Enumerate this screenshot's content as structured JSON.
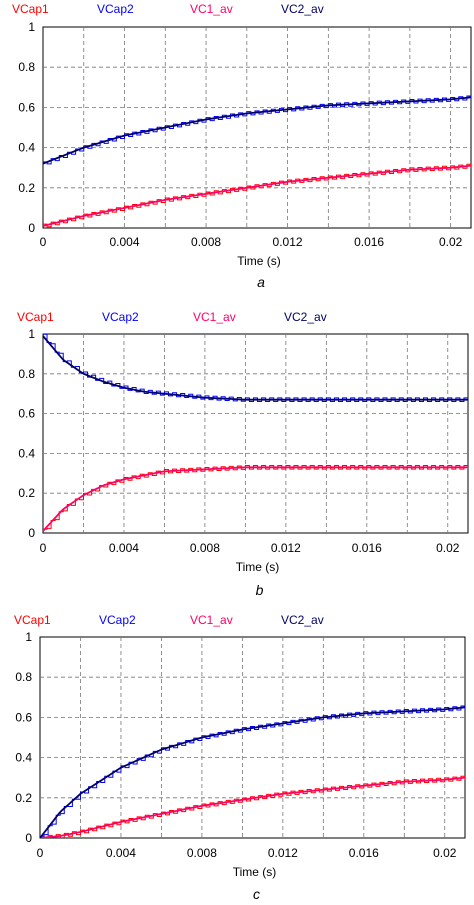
{
  "charts": [
    {
      "panel_label": "a",
      "legend": [
        {
          "label": "VCap1",
          "color": "#ff0000"
        },
        {
          "label": "VCap2",
          "color": "#0000ff"
        },
        {
          "label": "VC1_av",
          "color": "#ff0066"
        },
        {
          "label": "VC2_av",
          "color": "#000066"
        }
      ],
      "x_title": "Time (s)",
      "x_ticks": [
        "0",
        "0.004",
        "0.008",
        "0.012",
        "0.016",
        "0.02"
      ],
      "y_ticks": [
        "0",
        "0.2",
        "0.4",
        "0.6",
        "0.8",
        "1"
      ]
    },
    {
      "panel_label": "b",
      "legend": [
        {
          "label": "VCap1",
          "color": "#ff0000"
        },
        {
          "label": "VCap2",
          "color": "#0000ff"
        },
        {
          "label": "VC1_av",
          "color": "#ff0066"
        },
        {
          "label": "VC2_av",
          "color": "#000066"
        }
      ],
      "x_title": "Time (s)",
      "x_ticks": [
        "0",
        "0.004",
        "0.008",
        "0.012",
        "0.016",
        "0.02"
      ],
      "y_ticks": [
        "0",
        "0.2",
        "0.4",
        "0.6",
        "0.8",
        "1"
      ]
    },
    {
      "panel_label": "c",
      "legend": [
        {
          "label": "VCap1",
          "color": "#ff0000"
        },
        {
          "label": "VCap2",
          "color": "#0000ff"
        },
        {
          "label": "VC1_av",
          "color": "#ff0066"
        },
        {
          "label": "VC2_av",
          "color": "#000066"
        }
      ],
      "x_title": "Time (s)",
      "x_ticks": [
        "0",
        "0.004",
        "0.008",
        "0.012",
        "0.016",
        "0.02"
      ],
      "y_ticks": [
        "0",
        "0.2",
        "0.4",
        "0.6",
        "0.8",
        "1"
      ]
    }
  ],
  "chart_data": [
    {
      "type": "line",
      "xlim": [
        0,
        0.021
      ],
      "ylim": [
        0,
        1
      ],
      "grid": true,
      "legend_position": "top",
      "series": [
        {
          "name": "VCap1",
          "color": "#ff0000",
          "x": [
            0,
            0.002,
            0.004,
            0.006,
            0.008,
            0.01,
            0.012,
            0.014,
            0.016,
            0.018,
            0.02,
            0.021
          ],
          "y": [
            0.01,
            0.06,
            0.1,
            0.14,
            0.17,
            0.2,
            0.23,
            0.25,
            0.27,
            0.29,
            0.3,
            0.31
          ]
        },
        {
          "name": "VCap2",
          "color": "#0000ff",
          "x": [
            0,
            0.002,
            0.004,
            0.006,
            0.008,
            0.01,
            0.012,
            0.014,
            0.016,
            0.018,
            0.02,
            0.021
          ],
          "y": [
            0.32,
            0.4,
            0.46,
            0.5,
            0.54,
            0.57,
            0.59,
            0.61,
            0.62,
            0.63,
            0.64,
            0.65
          ]
        },
        {
          "name": "VC1_av",
          "color": "#ff0066",
          "x": [
            0,
            0.002,
            0.004,
            0.006,
            0.008,
            0.01,
            0.012,
            0.014,
            0.016,
            0.018,
            0.02,
            0.021
          ],
          "y": [
            0.01,
            0.06,
            0.1,
            0.14,
            0.17,
            0.2,
            0.23,
            0.25,
            0.27,
            0.29,
            0.3,
            0.31
          ]
        },
        {
          "name": "VC2_av",
          "color": "#000066",
          "x": [
            0,
            0.002,
            0.004,
            0.006,
            0.008,
            0.01,
            0.012,
            0.014,
            0.016,
            0.018,
            0.02,
            0.021
          ],
          "y": [
            0.32,
            0.4,
            0.46,
            0.5,
            0.54,
            0.57,
            0.59,
            0.61,
            0.62,
            0.63,
            0.64,
            0.65
          ]
        }
      ]
    },
    {
      "type": "line",
      "xlim": [
        0,
        0.021
      ],
      "ylim": [
        0,
        1
      ],
      "grid": true,
      "legend_position": "top",
      "series": [
        {
          "name": "VCap1",
          "color": "#ff0000",
          "x": [
            0,
            0.001,
            0.002,
            0.003,
            0.004,
            0.005,
            0.006,
            0.008,
            0.01,
            0.012,
            0.014,
            0.016,
            0.018,
            0.02,
            0.021
          ],
          "y": [
            0.01,
            0.12,
            0.19,
            0.24,
            0.27,
            0.29,
            0.31,
            0.32,
            0.33,
            0.33,
            0.33,
            0.33,
            0.33,
            0.33,
            0.33
          ]
        },
        {
          "name": "VCap2",
          "color": "#0000ff",
          "x": [
            0,
            0.001,
            0.002,
            0.003,
            0.004,
            0.005,
            0.006,
            0.008,
            0.01,
            0.012,
            0.014,
            0.016,
            0.018,
            0.02,
            0.021
          ],
          "y": [
            0.99,
            0.87,
            0.8,
            0.76,
            0.73,
            0.71,
            0.7,
            0.68,
            0.67,
            0.67,
            0.67,
            0.67,
            0.67,
            0.67,
            0.67
          ]
        },
        {
          "name": "VC1_av",
          "color": "#ff0066",
          "x": [
            0,
            0.001,
            0.002,
            0.003,
            0.004,
            0.005,
            0.006,
            0.008,
            0.01,
            0.012,
            0.014,
            0.016,
            0.018,
            0.02,
            0.021
          ],
          "y": [
            0.01,
            0.12,
            0.19,
            0.24,
            0.27,
            0.29,
            0.31,
            0.32,
            0.33,
            0.33,
            0.33,
            0.33,
            0.33,
            0.33,
            0.33
          ]
        },
        {
          "name": "VC2_av",
          "color": "#000066",
          "x": [
            0,
            0.001,
            0.002,
            0.003,
            0.004,
            0.005,
            0.006,
            0.008,
            0.01,
            0.012,
            0.014,
            0.016,
            0.018,
            0.02,
            0.021
          ],
          "y": [
            0.99,
            0.87,
            0.8,
            0.76,
            0.73,
            0.71,
            0.7,
            0.68,
            0.67,
            0.67,
            0.67,
            0.67,
            0.67,
            0.67,
            0.67
          ]
        }
      ]
    },
    {
      "type": "line",
      "xlim": [
        0,
        0.021
      ],
      "ylim": [
        0,
        1
      ],
      "grid": true,
      "legend_position": "top",
      "series": [
        {
          "name": "VCap1",
          "color": "#ff0000",
          "x": [
            0,
            0.001,
            0.002,
            0.004,
            0.006,
            0.008,
            0.01,
            0.012,
            0.014,
            0.016,
            0.018,
            0.02,
            0.021
          ],
          "y": [
            0.0,
            0.01,
            0.03,
            0.08,
            0.12,
            0.16,
            0.19,
            0.22,
            0.24,
            0.26,
            0.28,
            0.29,
            0.3
          ]
        },
        {
          "name": "VCap2",
          "color": "#0000ff",
          "x": [
            0,
            0.001,
            0.002,
            0.004,
            0.006,
            0.008,
            0.01,
            0.012,
            0.014,
            0.016,
            0.018,
            0.02,
            0.021
          ],
          "y": [
            0.0,
            0.13,
            0.22,
            0.35,
            0.44,
            0.5,
            0.54,
            0.57,
            0.6,
            0.62,
            0.63,
            0.64,
            0.65
          ]
        },
        {
          "name": "VC1_av",
          "color": "#ff0066",
          "x": [
            0,
            0.001,
            0.002,
            0.004,
            0.006,
            0.008,
            0.01,
            0.012,
            0.014,
            0.016,
            0.018,
            0.02,
            0.021
          ],
          "y": [
            0.0,
            0.01,
            0.03,
            0.08,
            0.12,
            0.16,
            0.19,
            0.22,
            0.24,
            0.26,
            0.28,
            0.29,
            0.3
          ]
        },
        {
          "name": "VC2_av",
          "color": "#000066",
          "x": [
            0,
            0.001,
            0.002,
            0.004,
            0.006,
            0.008,
            0.01,
            0.012,
            0.014,
            0.016,
            0.018,
            0.02,
            0.021
          ],
          "y": [
            0.0,
            0.13,
            0.22,
            0.35,
            0.44,
            0.5,
            0.54,
            0.57,
            0.6,
            0.62,
            0.63,
            0.64,
            0.65
          ]
        }
      ]
    }
  ]
}
